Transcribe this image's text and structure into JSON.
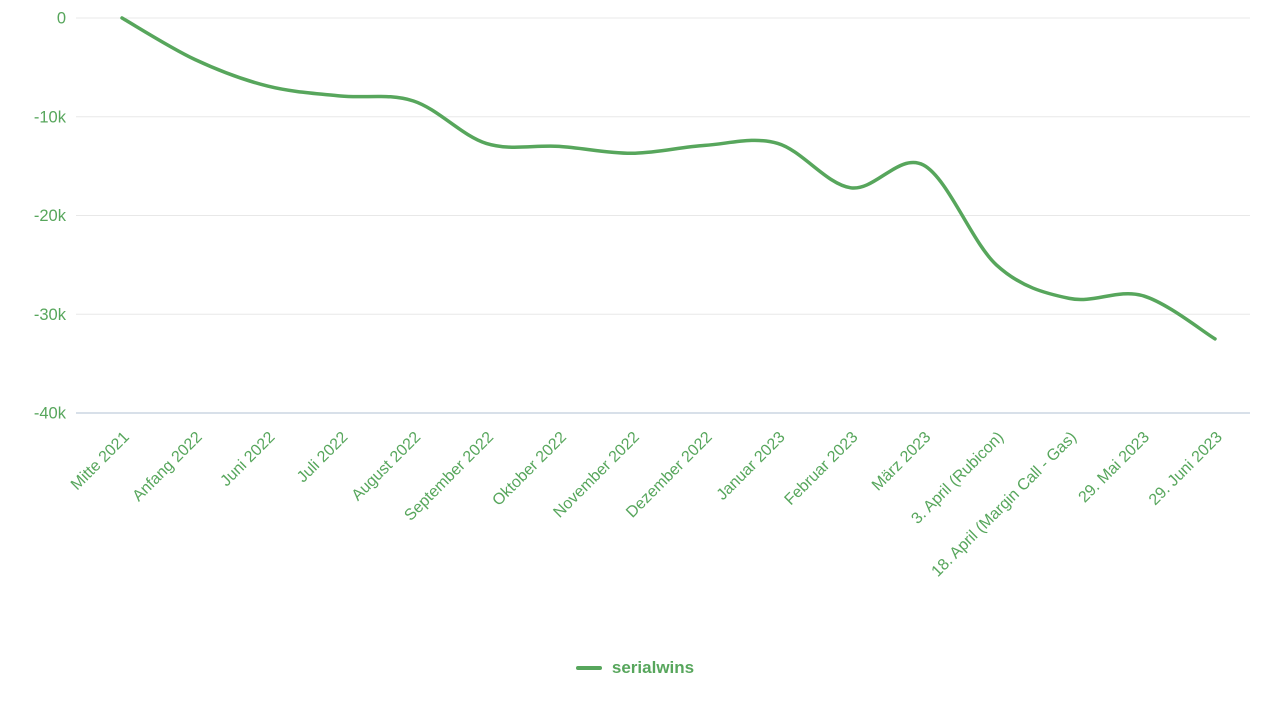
{
  "chart_data": {
    "type": "line",
    "title": "",
    "xlabel": "",
    "ylabel": "",
    "categories": [
      "Mitte 2021",
      "Anfang 2022",
      "Juni 2022",
      "Juli 2022",
      "August 2022",
      "September 2022",
      "Oktober 2022",
      "November 2022",
      "Dezember 2022",
      "Januar 2023",
      "Februar 2023",
      "März 2023",
      "3. April (Rubicon)",
      "18. April (Margin Call - Gas)",
      "29. Mai 2023",
      "29. Juni 2023"
    ],
    "series": [
      {
        "name": "serialwins",
        "values": [
          0,
          -4200,
          -6900,
          -7900,
          -8400,
          -12700,
          -13000,
          -13700,
          -12900,
          -12700,
          -17200,
          -14900,
          -25000,
          -28400,
          -28100,
          -32500
        ]
      }
    ],
    "y_ticks": [
      {
        "label": "0",
        "value": 0
      },
      {
        "label": "-10k",
        "value": -10000
      },
      {
        "label": "-20k",
        "value": -20000
      },
      {
        "label": "-30k",
        "value": -30000
      },
      {
        "label": "-40k",
        "value": -40000
      }
    ],
    "ylim": [
      -40000,
      0
    ],
    "grid": true,
    "legend_position": "bottom",
    "colors": {
      "line": "#57a65c",
      "labels": "#57a65c",
      "gridline": "#e8e8e8",
      "axis_line": "#ccd6e2"
    }
  },
  "legend": {
    "items": [
      {
        "label": "serialwins",
        "color": "#57a65c"
      }
    ]
  }
}
